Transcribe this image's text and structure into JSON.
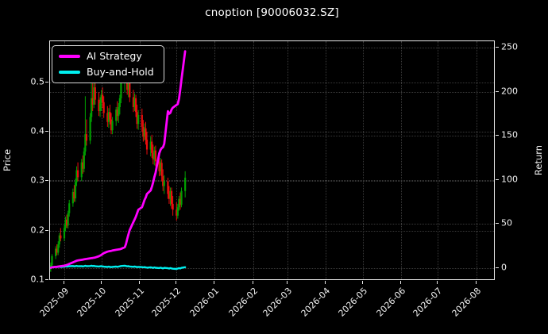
{
  "title": "cnoption [90006032.SZ]",
  "axes": {
    "left_label": "Price",
    "right_label": "Return",
    "left_ticks": [
      "0.1",
      "0.2",
      "0.3",
      "0.4",
      "0.5"
    ],
    "left_tick_values": [
      0.1,
      0.2,
      0.3,
      0.4,
      0.5
    ],
    "right_ticks": [
      "0",
      "50",
      "100",
      "150",
      "200",
      "250"
    ],
    "right_tick_values": [
      0,
      50,
      100,
      150,
      200,
      250
    ],
    "x_ticks": [
      "2025-09",
      "2025-10",
      "2025-11",
      "2025-12",
      "2026-01",
      "2026-02",
      "2026-03",
      "2026-04",
      "2026-05",
      "2026-06",
      "2026-07",
      "2026-08"
    ],
    "x_tick_dates": [
      "2025-09-01",
      "2025-10-01",
      "2025-11-01",
      "2025-12-01",
      "2026-01-01",
      "2026-02-01",
      "2026-03-01",
      "2026-04-01",
      "2026-05-01",
      "2026-06-01",
      "2026-07-01",
      "2026-08-01"
    ]
  },
  "legend": {
    "items": [
      {
        "label": "AI Strategy",
        "color": "#FF00FF"
      },
      {
        "label": "Buy-and-Hold",
        "color": "#00EFEF"
      }
    ]
  },
  "colors": {
    "background": "#000000",
    "text": "#F2F2F2",
    "spine": "#E8E8E8",
    "grid": "#3A3A3A",
    "candle_up": "#00A000",
    "candle_down": "#EB0E0E",
    "ai_strategy": "#FF00FF",
    "buy_and_hold": "#00EFEF"
  },
  "chart_data": {
    "type": "candlestick+line",
    "title": "cnoption [90006032.SZ]",
    "price_axis": {
      "label": "Price",
      "range": [
        0.1,
        0.583
      ],
      "grid": true
    },
    "return_axis": {
      "label": "Return",
      "range": [
        -14.5,
        257
      ],
      "grid": true
    },
    "x_axis": {
      "range": [
        "2025-08-20",
        "2026-08-16"
      ],
      "tick_format": "YYYY-MM",
      "tick_rotation": 45
    },
    "legend_position": "upper left",
    "dates": [
      "2025-08-20",
      "2025-08-21",
      "2025-08-22",
      "2025-08-25",
      "2025-08-26",
      "2025-08-27",
      "2025-08-28",
      "2025-08-29",
      "2025-09-01",
      "2025-09-02",
      "2025-09-03",
      "2025-09-04",
      "2025-09-05",
      "2025-09-08",
      "2025-09-09",
      "2025-09-10",
      "2025-09-11",
      "2025-09-12",
      "2025-09-15",
      "2025-09-16",
      "2025-09-17",
      "2025-09-18",
      "2025-09-19",
      "2025-09-22",
      "2025-09-23",
      "2025-09-24",
      "2025-09-25",
      "2025-09-26",
      "2025-09-29",
      "2025-09-30",
      "2025-10-01",
      "2025-10-02",
      "2025-10-03",
      "2025-10-06",
      "2025-10-07",
      "2025-10-08",
      "2025-10-09",
      "2025-10-10",
      "2025-10-13",
      "2025-10-14",
      "2025-10-15",
      "2025-10-16",
      "2025-10-17",
      "2025-10-20",
      "2025-10-21",
      "2025-10-22",
      "2025-10-23",
      "2025-10-24",
      "2025-10-27",
      "2025-10-28",
      "2025-10-29",
      "2025-10-30",
      "2025-10-31",
      "2025-11-03",
      "2025-11-04",
      "2025-11-05",
      "2025-11-06",
      "2025-11-07",
      "2025-11-10",
      "2025-11-11",
      "2025-11-12",
      "2025-11-13",
      "2025-11-14",
      "2025-11-17",
      "2025-11-18",
      "2025-11-19",
      "2025-11-20",
      "2025-11-21",
      "2025-11-24",
      "2025-11-25",
      "2025-11-26",
      "2025-11-27",
      "2025-11-28",
      "2025-12-01",
      "2025-12-02",
      "2025-12-03",
      "2025-12-04",
      "2025-12-05",
      "2025-12-08"
    ],
    "ohlc": [
      [
        0.118,
        0.128,
        0.11,
        0.122
      ],
      [
        0.122,
        0.135,
        0.116,
        0.13
      ],
      [
        0.13,
        0.152,
        0.126,
        0.148
      ],
      [
        0.148,
        0.168,
        0.142,
        0.163
      ],
      [
        0.163,
        0.172,
        0.15,
        0.155
      ],
      [
        0.155,
        0.178,
        0.15,
        0.172
      ],
      [
        0.172,
        0.195,
        0.165,
        0.19
      ],
      [
        0.19,
        0.205,
        0.178,
        0.184
      ],
      [
        0.184,
        0.212,
        0.178,
        0.205
      ],
      [
        0.205,
        0.228,
        0.198,
        0.222
      ],
      [
        0.222,
        0.232,
        0.205,
        0.21
      ],
      [
        0.21,
        0.24,
        0.204,
        0.235
      ],
      [
        0.235,
        0.262,
        0.228,
        0.255
      ],
      [
        0.255,
        0.285,
        0.248,
        0.278
      ],
      [
        0.278,
        0.292,
        0.258,
        0.265
      ],
      [
        0.265,
        0.305,
        0.258,
        0.298
      ],
      [
        0.298,
        0.33,
        0.29,
        0.322
      ],
      [
        0.322,
        0.338,
        0.3,
        0.308
      ],
      [
        0.308,
        0.345,
        0.3,
        0.338
      ],
      [
        0.338,
        0.352,
        0.315,
        0.325
      ],
      [
        0.325,
        0.368,
        0.318,
        0.36
      ],
      [
        0.36,
        0.472,
        0.352,
        0.395
      ],
      [
        0.395,
        0.425,
        0.372,
        0.382
      ],
      [
        0.382,
        0.438,
        0.375,
        0.43
      ],
      [
        0.43,
        0.54,
        0.42,
        0.468
      ],
      [
        0.468,
        0.498,
        0.442,
        0.455
      ],
      [
        0.455,
        0.512,
        0.448,
        0.49
      ],
      [
        0.49,
        0.502,
        0.455,
        0.465
      ],
      [
        0.465,
        0.48,
        0.432,
        0.442
      ],
      [
        0.442,
        0.47,
        0.43,
        0.458
      ],
      [
        0.458,
        0.485,
        0.442,
        0.475
      ],
      [
        0.475,
        0.49,
        0.448,
        0.46
      ],
      [
        0.46,
        0.472,
        0.428,
        0.438
      ],
      [
        0.438,
        0.452,
        0.41,
        0.42
      ],
      [
        0.42,
        0.448,
        0.408,
        0.44
      ],
      [
        0.44,
        0.455,
        0.415,
        0.425
      ],
      [
        0.425,
        0.438,
        0.395,
        0.403
      ],
      [
        0.403,
        0.43,
        0.395,
        0.422
      ],
      [
        0.422,
        0.45,
        0.412,
        0.445
      ],
      [
        0.445,
        0.462,
        0.422,
        0.432
      ],
      [
        0.432,
        0.458,
        0.418,
        0.45
      ],
      [
        0.45,
        0.475,
        0.435,
        0.468
      ],
      [
        0.468,
        0.545,
        0.458,
        0.508
      ],
      [
        0.508,
        0.552,
        0.48,
        0.525
      ],
      [
        0.525,
        0.555,
        0.5,
        0.51
      ],
      [
        0.51,
        0.528,
        0.475,
        0.485
      ],
      [
        0.485,
        0.51,
        0.47,
        0.498
      ],
      [
        0.498,
        0.505,
        0.46,
        0.47
      ],
      [
        0.47,
        0.485,
        0.44,
        0.45
      ],
      [
        0.45,
        0.478,
        0.442,
        0.468
      ],
      [
        0.468,
        0.475,
        0.43,
        0.44
      ],
      [
        0.44,
        0.455,
        0.406,
        0.416
      ],
      [
        0.416,
        0.444,
        0.404,
        0.434
      ],
      [
        0.434,
        0.447,
        0.4,
        0.41
      ],
      [
        0.41,
        0.424,
        0.38,
        0.39
      ],
      [
        0.39,
        0.417,
        0.382,
        0.407
      ],
      [
        0.407,
        0.42,
        0.374,
        0.384
      ],
      [
        0.384,
        0.4,
        0.354,
        0.364
      ],
      [
        0.364,
        0.39,
        0.35,
        0.38
      ],
      [
        0.38,
        0.394,
        0.347,
        0.357
      ],
      [
        0.357,
        0.374,
        0.334,
        0.344
      ],
      [
        0.344,
        0.37,
        0.332,
        0.362
      ],
      [
        0.362,
        0.372,
        0.33,
        0.34
      ],
      [
        0.34,
        0.354,
        0.31,
        0.32
      ],
      [
        0.32,
        0.347,
        0.312,
        0.337
      ],
      [
        0.337,
        0.344,
        0.3,
        0.31
      ],
      [
        0.31,
        0.324,
        0.28,
        0.29
      ],
      [
        0.29,
        0.312,
        0.274,
        0.3
      ],
      [
        0.3,
        0.307,
        0.264,
        0.274
      ],
      [
        0.274,
        0.29,
        0.254,
        0.264
      ],
      [
        0.264,
        0.287,
        0.25,
        0.28
      ],
      [
        0.28,
        0.287,
        0.244,
        0.254
      ],
      [
        0.254,
        0.27,
        0.23,
        0.242
      ],
      [
        0.242,
        0.257,
        0.22,
        0.23
      ],
      [
        0.23,
        0.254,
        0.224,
        0.247
      ],
      [
        0.247,
        0.27,
        0.24,
        0.264
      ],
      [
        0.264,
        0.277,
        0.242,
        0.252
      ],
      [
        0.252,
        0.287,
        0.247,
        0.28
      ],
      [
        0.28,
        0.32,
        0.267,
        0.307
      ]
    ],
    "series": [
      {
        "name": "AI Strategy",
        "axis": "return",
        "color": "#FF00FF",
        "values": [
          0,
          0.3,
          0.7,
          1.2,
          1.3,
          1.5,
          1.7,
          2.0,
          2.5,
          2.9,
          3.4,
          3.9,
          4.5,
          6.3,
          6.9,
          7.6,
          8.2,
          8.5,
          9.2,
          9.5,
          9.7,
          10.0,
          10.2,
          10.9,
          11.1,
          11.3,
          11.6,
          11.8,
          13.2,
          14.0,
          14.8,
          15.8,
          16.8,
          18.5,
          18.8,
          19.1,
          19.4,
          19.7,
          20.5,
          20.8,
          21.0,
          21.3,
          21.6,
          23.5,
          27.0,
          33.0,
          38.0,
          43.0,
          52.0,
          55.0,
          58.0,
          62.0,
          66.0,
          69.0,
          73.0,
          77.0,
          80.0,
          84.0,
          88.0,
          92.0,
          97.0,
          103.0,
          108.0,
          130.0,
          134.0,
          136.0,
          137.0,
          141.0,
          178.0,
          175.0,
          176.0,
          180.0,
          182.0,
          185.0,
          186.0,
          192.0,
          202.0,
          214.0,
          246.0
        ]
      },
      {
        "name": "Buy-and-Hold",
        "axis": "return",
        "color": "#00EFEF",
        "values": [
          0,
          0.4,
          0.9,
          1.3,
          1.0,
          1.2,
          1.5,
          1.1,
          1.4,
          1.8,
          1.5,
          1.7,
          2.0,
          2.2,
          1.8,
          2.0,
          2.3,
          1.9,
          2.1,
          1.7,
          2.0,
          2.4,
          2.0,
          2.2,
          2.5,
          2.1,
          2.3,
          1.9,
          1.6,
          1.8,
          2.0,
          1.7,
          1.4,
          1.1,
          1.4,
          1.2,
          0.9,
          1.2,
          1.5,
          1.2,
          1.5,
          1.8,
          2.2,
          2.5,
          2.2,
          1.8,
          2.0,
          1.6,
          1.3,
          1.6,
          1.3,
          0.9,
          1.2,
          0.9,
          0.6,
          0.9,
          0.6,
          0.3,
          0.7,
          0.4,
          0.1,
          0.5,
          0.2,
          -0.2,
          0.3,
          -0.1,
          -0.5,
          0.1,
          -0.4,
          -0.7,
          -0.2,
          -0.6,
          -0.9,
          -1.2,
          -0.7,
          -0.3,
          -0.6,
          0.1,
          0.8
        ]
      }
    ]
  }
}
